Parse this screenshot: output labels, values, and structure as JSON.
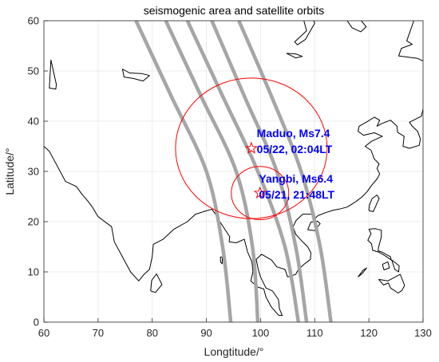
{
  "chart_data": {
    "type": "map",
    "title": "seismogenic area and satellite orbits",
    "xlabel": "Longtitude/°",
    "ylabel": "Latitude/°",
    "xlim": [
      60,
      130
    ],
    "ylim": [
      0,
      60
    ],
    "xticks": [
      "60",
      "70",
      "80",
      "90",
      "100",
      "110",
      "120",
      "130"
    ],
    "yticks": [
      "0",
      "10",
      "20",
      "30",
      "40",
      "50",
      "60"
    ],
    "grid": true,
    "colors": {
      "orbit": "#a6a6a6",
      "circle": "#ff0000",
      "annotation": "#0000ff",
      "coast": "#000000",
      "grid": "#e6e6e6"
    },
    "orbits": [
      {
        "points": [
          [
            77.0,
            60
          ],
          [
            83.5,
            45
          ],
          [
            90.0,
            30
          ],
          [
            93.0,
            15
          ],
          [
            94.5,
            0
          ]
        ]
      },
      {
        "points": [
          [
            82.5,
            60
          ],
          [
            89.0,
            45
          ],
          [
            95.5,
            30
          ],
          [
            98.5,
            15
          ],
          [
            99.5,
            0
          ]
        ]
      },
      {
        "points": [
          [
            86.5,
            60
          ],
          [
            93.0,
            45
          ],
          [
            99.5,
            30
          ],
          [
            104.5,
            15
          ],
          [
            107.0,
            0
          ]
        ]
      },
      {
        "points": [
          [
            91.0,
            60
          ],
          [
            97.0,
            45
          ],
          [
            103.0,
            30
          ],
          [
            106.5,
            15
          ],
          [
            108.5,
            0
          ]
        ]
      },
      {
        "points": [
          [
            96.0,
            60
          ],
          [
            102.0,
            45
          ],
          [
            107.5,
            30
          ],
          [
            111.0,
            15
          ],
          [
            113.0,
            0
          ]
        ]
      }
    ],
    "events": [
      {
        "name": "Maduo",
        "lon": 98.3,
        "lat": 34.6,
        "radius_deg": 14.0,
        "label_line1": "Maduo, Ms7.4",
        "label_line2": "05/22, 02:04LT",
        "label_lon": 99.3,
        "label_lat": 36.8
      },
      {
        "name": "Yangbi",
        "lon": 99.9,
        "lat": 25.7,
        "radius_deg": 5.3,
        "label_line1": "Yangbi, Ms6.4",
        "label_line2": "05/21, 21:48LT",
        "label_lon": 99.7,
        "label_lat": 27.8
      }
    ],
    "coastlines": [
      [
        [
          60,
          35
        ],
        [
          61,
          34
        ],
        [
          62.5,
          31
        ],
        [
          64,
          28
        ],
        [
          66,
          27
        ],
        [
          67,
          25.5
        ],
        [
          68.2,
          24
        ],
        [
          69,
          22.8
        ],
        [
          70,
          21
        ],
        [
          72.5,
          19
        ],
        [
          73,
          16
        ],
        [
          74.5,
          13
        ],
        [
          76,
          10
        ],
        [
          77.5,
          8.2
        ],
        [
          78.5,
          9.5
        ],
        [
          79.5,
          10.5
        ],
        [
          80,
          13
        ],
        [
          80.2,
          15.5
        ],
        [
          82,
          16.5
        ],
        [
          84,
          18.5
        ],
        [
          86.5,
          20
        ],
        [
          88,
          21.5
        ],
        [
          89.5,
          22
        ],
        [
          91,
          22.5
        ],
        [
          92,
          21
        ],
        [
          92.5,
          20
        ],
        [
          94.3,
          17
        ],
        [
          94.2,
          16
        ],
        [
          95.5,
          15.8
        ],
        [
          97,
          16.5
        ],
        [
          97.6,
          14
        ],
        [
          98.4,
          12
        ],
        [
          98.6,
          10
        ],
        [
          98.2,
          8.2
        ],
        [
          99.4,
          7
        ],
        [
          100.6,
          6.6
        ],
        [
          101,
          5
        ],
        [
          102,
          3
        ],
        [
          103.3,
          1.4
        ],
        [
          104,
          1.3
        ],
        [
          103.5,
          2.6
        ],
        [
          103.3,
          4.5
        ],
        [
          102.2,
          6.2
        ],
        [
          101,
          6.8
        ],
        [
          100,
          9
        ],
        [
          99.6,
          10.4
        ],
        [
          99.2,
          12.5
        ],
        [
          100.2,
          13.5
        ],
        [
          101,
          13
        ],
        [
          102,
          12.4
        ],
        [
          103,
          11
        ],
        [
          104.5,
          10.5
        ],
        [
          105,
          9
        ],
        [
          106.5,
          9.5
        ],
        [
          107,
          10.5
        ],
        [
          108,
          11.5
        ],
        [
          109.2,
          12.5
        ],
        [
          109.3,
          13.8
        ],
        [
          108.7,
          15
        ],
        [
          107.5,
          16.3
        ],
        [
          106.5,
          17.5
        ],
        [
          106,
          19
        ],
        [
          106.6,
          20.3
        ],
        [
          107.8,
          21.5
        ],
        [
          109.5,
          21.5
        ],
        [
          110,
          20.6
        ],
        [
          110.6,
          21.2
        ],
        [
          112,
          21.8
        ],
        [
          113.5,
          22.3
        ],
        [
          114.5,
          22.5
        ],
        [
          116,
          22.9
        ],
        [
          117.6,
          24
        ],
        [
          118.8,
          25
        ],
        [
          119.7,
          26
        ],
        [
          120.5,
          27.2
        ],
        [
          121.5,
          28.5
        ],
        [
          122,
          29.5
        ],
        [
          121.5,
          30.6
        ],
        [
          121.9,
          31.5
        ],
        [
          121,
          32.5
        ],
        [
          120.4,
          34.2
        ],
        [
          119.3,
          35
        ],
        [
          120.5,
          36
        ],
        [
          122.5,
          37
        ],
        [
          121,
          37.7
        ],
        [
          119,
          37.2
        ],
        [
          118,
          38
        ],
        [
          118.2,
          39
        ],
        [
          119.5,
          39.8
        ],
        [
          121,
          40.8
        ],
        [
          122,
          40.2
        ],
        [
          121.5,
          39
        ],
        [
          122.3,
          39.5
        ],
        [
          124,
          40.2
        ],
        [
          125.2,
          39
        ],
        [
          125.3,
          37.8
        ],
        [
          126.5,
          37
        ],
        [
          126.3,
          35
        ],
        [
          127.5,
          34.6
        ],
        [
          129.3,
          35.2
        ],
        [
          129.5,
          36.5
        ],
        [
          129,
          38
        ],
        [
          128,
          39
        ],
        [
          127.5,
          39.8
        ],
        [
          129.7,
          41
        ],
        [
          130,
          42.4
        ]
      ],
      [
        [
          120,
          22.2
        ],
        [
          120.8,
          22.0
        ],
        [
          121.9,
          24.6
        ],
        [
          121.5,
          25.3
        ],
        [
          120.6,
          24.6
        ],
        [
          120.1,
          23.3
        ],
        [
          120,
          22.2
        ]
      ],
      [
        [
          108.7,
          18.4
        ],
        [
          110,
          18.2
        ],
        [
          111,
          19.6
        ],
        [
          110.5,
          20.1
        ],
        [
          109.3,
          19.9
        ],
        [
          108.7,
          18.4
        ]
      ],
      [
        [
          79.7,
          6.2
        ],
        [
          80.6,
          5.9
        ],
        [
          81.8,
          7.5
        ],
        [
          80.8,
          9.6
        ],
        [
          79.9,
          8.3
        ],
        [
          79.7,
          6.2
        ]
      ],
      [
        [
          92.6,
          13.0
        ],
        [
          92.95,
          12.9
        ],
        [
          92.9,
          11.6
        ],
        [
          92.6,
          12.0
        ],
        [
          92.6,
          13.0
        ]
      ],
      [
        [
          120,
          18.5
        ],
        [
          121.2,
          18.6
        ],
        [
          122.3,
          18.3
        ],
        [
          122.3,
          17
        ],
        [
          121.8,
          15
        ],
        [
          121.7,
          14.2
        ],
        [
          122.5,
          13.9
        ],
        [
          124,
          13
        ],
        [
          124.1,
          12.4
        ],
        [
          123,
          13.2
        ],
        [
          121.9,
          13.9
        ],
        [
          120.7,
          14.3
        ],
        [
          120.5,
          15.6
        ],
        [
          119.8,
          16.3
        ],
        [
          120.4,
          17.6
        ],
        [
          120,
          18.5
        ]
      ],
      [
        [
          122.5,
          11.5
        ],
        [
          123.5,
          12
        ],
        [
          123.8,
          10.8
        ],
        [
          122.8,
          10.4
        ],
        [
          122.5,
          11.5
        ]
      ],
      [
        [
          124.2,
          12.4
        ],
        [
          125.6,
          11.2
        ],
        [
          125.5,
          10
        ],
        [
          124.8,
          10.5
        ],
        [
          124.2,
          12.4
        ]
      ],
      [
        [
          118,
          9
        ],
        [
          118.9,
          10.3
        ],
        [
          119.6,
          10.8
        ],
        [
          118.8,
          9.7
        ],
        [
          118,
          9
        ]
      ],
      [
        [
          121.8,
          8.5
        ],
        [
          123.5,
          8.2
        ],
        [
          124.7,
          8.9
        ],
        [
          125.8,
          9.5
        ],
        [
          126.6,
          7.3
        ],
        [
          126.1,
          6.3
        ],
        [
          125.4,
          5.8
        ],
        [
          124,
          6.8
        ],
        [
          123.6,
          7.8
        ],
        [
          122.7,
          7.4
        ],
        [
          121.8,
          8.5
        ]
      ],
      [
        [
          128.3,
          60
        ],
        [
          127,
          56
        ],
        [
          128,
          55.3
        ],
        [
          126,
          54.5
        ],
        [
          125.5,
          53
        ],
        [
          129,
          52.5
        ],
        [
          130,
          52
        ]
      ],
      [
        [
          108,
          60
        ],
        [
          108.5,
          58
        ],
        [
          106.3,
          55.8
        ],
        [
          106.8,
          55.2
        ],
        [
          108.3,
          56.3
        ],
        [
          110,
          59.5
        ],
        [
          109.8,
          60
        ]
      ],
      [
        [
          104.8,
          53.5
        ],
        [
          106.5,
          53.4
        ],
        [
          107.7,
          52.9
        ],
        [
          106.5,
          52.6
        ],
        [
          104.8,
          53.5
        ]
      ],
      [
        [
          74.5,
          50.4
        ],
        [
          74.8,
          48.8
        ],
        [
          76.5,
          48.5
        ],
        [
          78.3,
          48
        ],
        [
          79.5,
          49.1
        ],
        [
          78,
          49.5
        ],
        [
          75.8,
          49.6
        ],
        [
          74.5,
          50.4
        ]
      ],
      [
        [
          61.3,
          52.2
        ],
        [
          61.0,
          46.6
        ],
        [
          62.2,
          46.4
        ],
        [
          62.3,
          47.3
        ],
        [
          61.3,
          52.2
        ]
      ],
      [
        [
          116,
          60
        ],
        [
          116.9,
          58.6
        ],
        [
          118.5,
          57.8
        ],
        [
          119.5,
          58.8
        ],
        [
          118.6,
          60
        ]
      ]
    ]
  }
}
